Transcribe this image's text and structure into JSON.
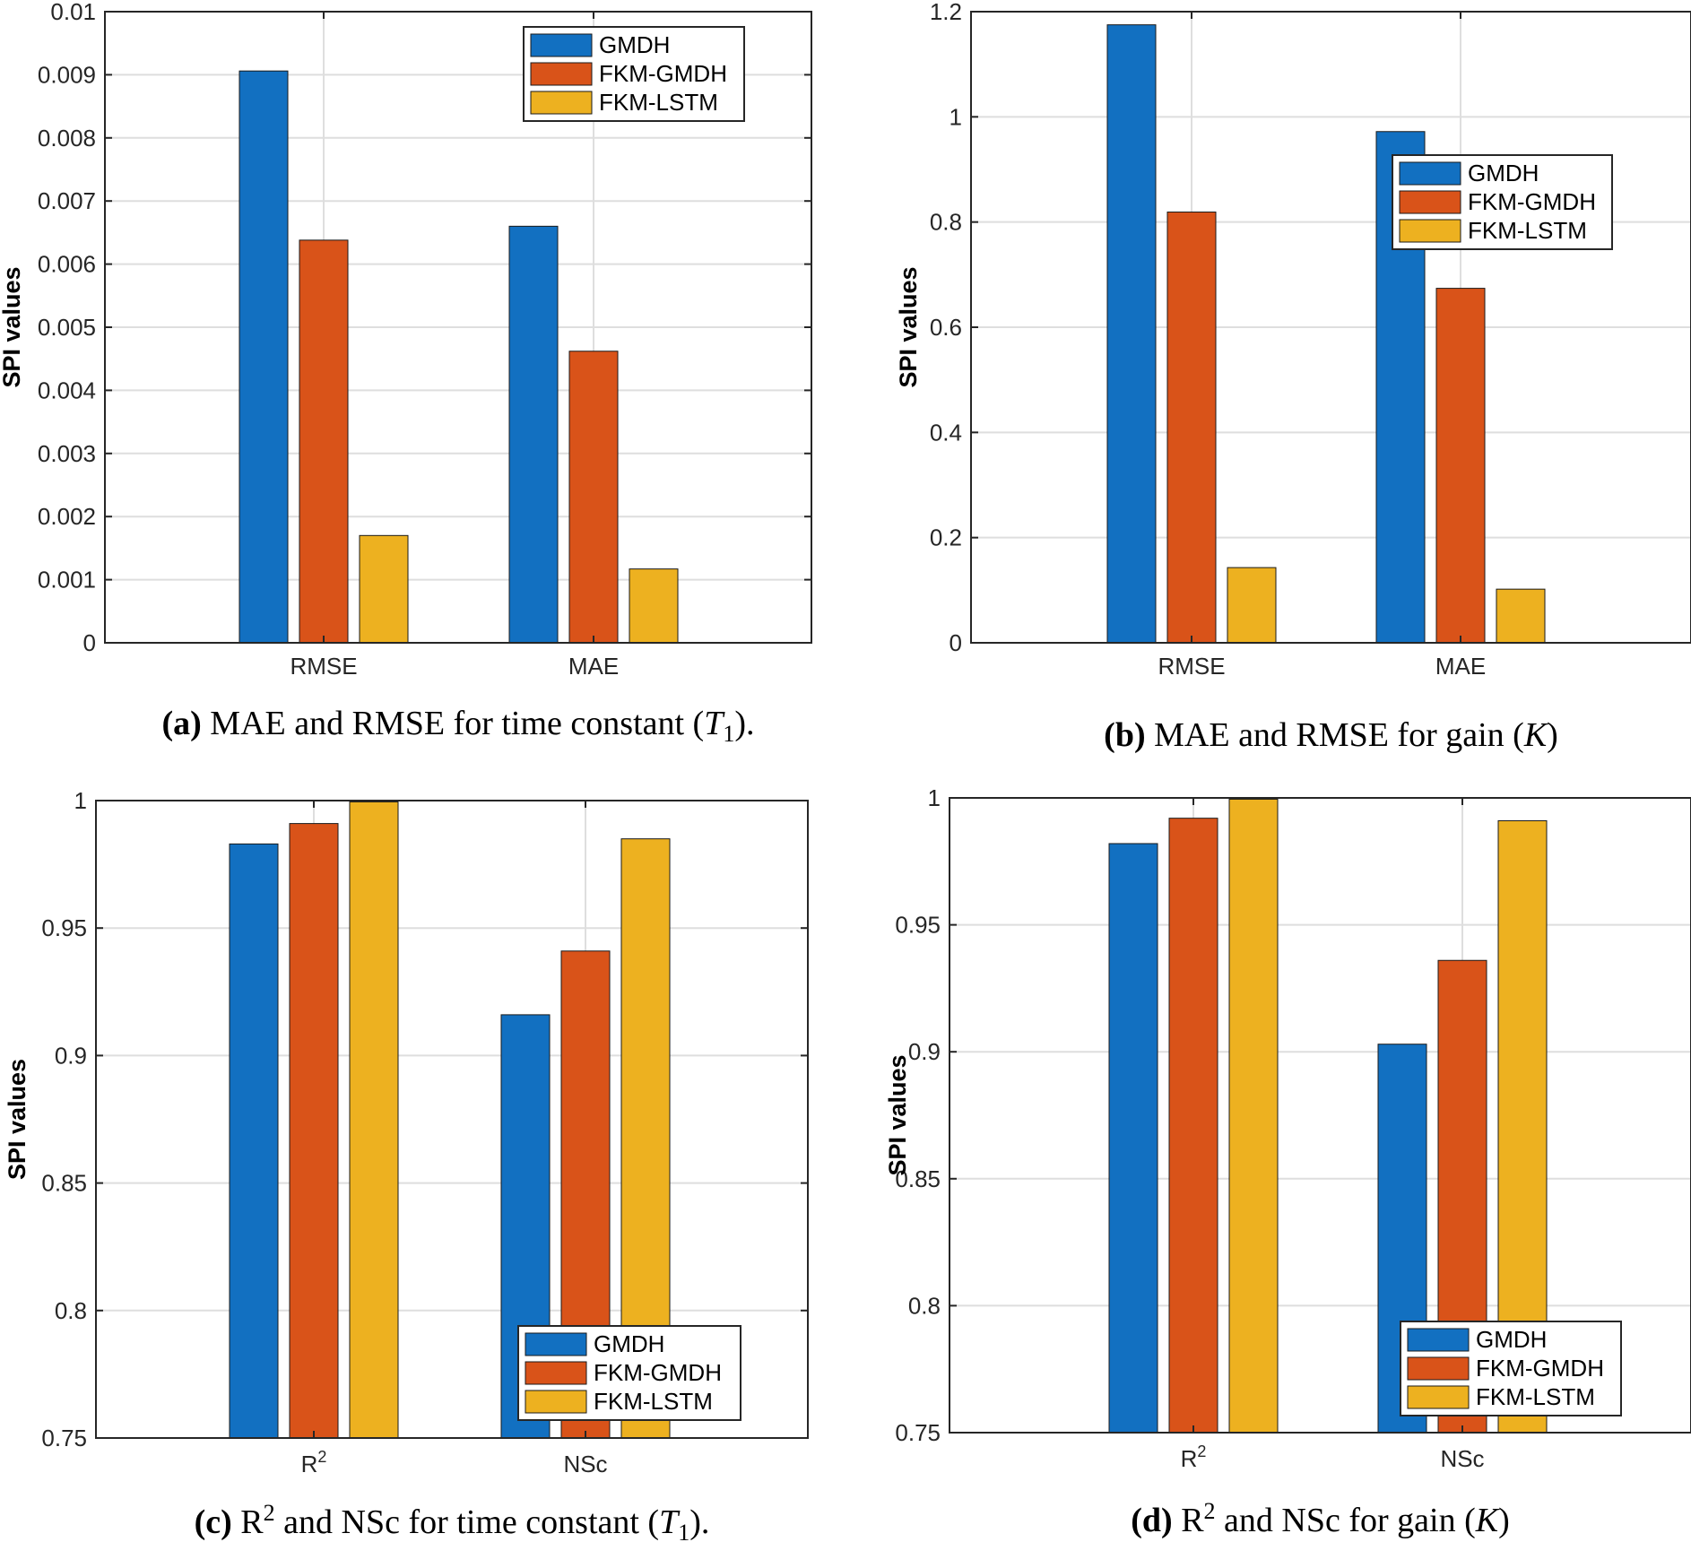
{
  "colors": {
    "GMDH": "#1270c1",
    "FKM-GMDH": "#d95319",
    "FKM-LSTM": "#edb120",
    "grid": "#dedede",
    "axis": "#262626"
  },
  "chart_data": [
    {
      "type": "bar",
      "panel": "a",
      "categories": [
        "RMSE",
        "MAE"
      ],
      "series": [
        {
          "name": "GMDH",
          "values": [
            0.00906,
            0.0066
          ]
        },
        {
          "name": "FKM-GMDH",
          "values": [
            0.00638,
            0.00462
          ]
        },
        {
          "name": "FKM-LSTM",
          "values": [
            0.0017,
            0.00117
          ]
        }
      ],
      "ylabel": "SPI values",
      "ylim": [
        0,
        0.01
      ],
      "yticks": [
        "0",
        "0.001",
        "0.002",
        "0.003",
        "0.004",
        "0.005",
        "0.006",
        "0.007",
        "0.008",
        "0.009",
        "0.01"
      ],
      "grid": true,
      "legend": {
        "position": "top-right",
        "entries": [
          "GMDH",
          "FKM-GMDH",
          "FKM-LSTM"
        ]
      },
      "caption": {
        "label": "(a)",
        "text": " MAE and RMSE for time constant (",
        "var": "T",
        "sub": "1",
        "end": ")."
      }
    },
    {
      "type": "bar",
      "panel": "b",
      "categories": [
        "RMSE",
        "MAE"
      ],
      "series": [
        {
          "name": "GMDH",
          "values": [
            1.175,
            0.972
          ]
        },
        {
          "name": "FKM-GMDH",
          "values": [
            0.819,
            0.674
          ]
        },
        {
          "name": "FKM-LSTM",
          "values": [
            0.143,
            0.102
          ]
        }
      ],
      "ylabel": "SPI values",
      "ylim": [
        0,
        1.2
      ],
      "yticks": [
        "0",
        "0.2",
        "0.4",
        "0.6",
        "0.8",
        "1",
        "1.2"
      ],
      "grid": true,
      "legend": {
        "position": "upper-right",
        "entries": [
          "GMDH",
          "FKM-GMDH",
          "FKM-LSTM"
        ]
      },
      "caption": {
        "label": "(b)",
        "text": " MAE and RMSE for gain (",
        "var": "K",
        "sub": "",
        "end": ")"
      }
    },
    {
      "type": "bar",
      "panel": "c",
      "categories": [
        "R",
        "NSc"
      ],
      "category_sup": [
        "2",
        ""
      ],
      "series": [
        {
          "name": "GMDH",
          "values": [
            0.983,
            0.916
          ]
        },
        {
          "name": "FKM-GMDH",
          "values": [
            0.991,
            0.941
          ]
        },
        {
          "name": "FKM-LSTM",
          "values": [
            0.9995,
            0.985
          ]
        }
      ],
      "ylabel": "SPI values",
      "ylim": [
        0.75,
        1
      ],
      "yticks": [
        "0.75",
        "0.8",
        "0.85",
        "0.9",
        "0.95",
        "1"
      ],
      "grid": true,
      "legend": {
        "position": "bottom-right",
        "entries": [
          "GMDH",
          "FKM-GMDH",
          "FKM-LSTM"
        ]
      },
      "caption": {
        "label": "(c)",
        "text": " R",
        "sup": "2",
        "text2": " and NSc for time constant (",
        "var": "T",
        "sub": "1",
        "end": ")."
      }
    },
    {
      "type": "bar",
      "panel": "d",
      "categories": [
        "R",
        "NSc"
      ],
      "category_sup": [
        "2",
        ""
      ],
      "series": [
        {
          "name": "GMDH",
          "values": [
            0.982,
            0.903
          ]
        },
        {
          "name": "FKM-GMDH",
          "values": [
            0.992,
            0.936
          ]
        },
        {
          "name": "FKM-LSTM",
          "values": [
            0.9995,
            0.991
          ]
        }
      ],
      "ylabel": "SPI values",
      "ylim": [
        0.75,
        1
      ],
      "yticks": [
        "0.75",
        "0.8",
        "0.85",
        "0.9",
        "0.95",
        "1"
      ],
      "grid": true,
      "legend": {
        "position": "bottom-right",
        "entries": [
          "GMDH",
          "FKM-GMDH",
          "FKM-LSTM"
        ]
      },
      "caption": {
        "label": "(d)",
        "text": " R",
        "sup": "2",
        "text2": " and NSc for gain (",
        "var": "K",
        "sub": "",
        "end": ")"
      }
    }
  ]
}
